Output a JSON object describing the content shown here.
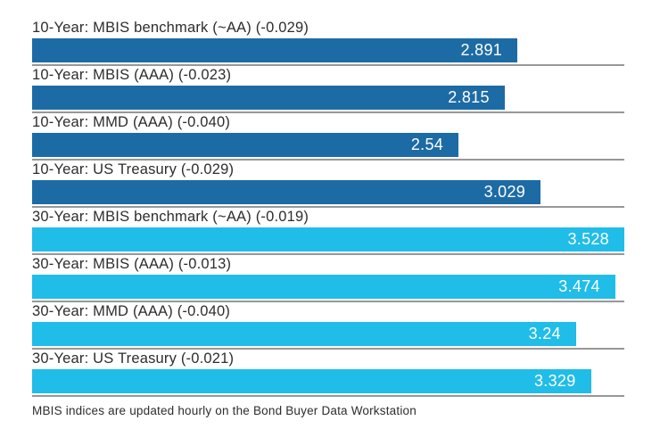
{
  "chart_data": {
    "type": "bar",
    "orientation": "horizontal",
    "title": "",
    "xlabel": "",
    "ylabel": "",
    "xlim": [
      0,
      3.528
    ],
    "grid": false,
    "legend": "none",
    "colors": {
      "ten_year": "#1d6ba5",
      "thirty_year": "#20bde8",
      "separator": "#979797",
      "label_text": "#2d2d2d",
      "value_text": "#ffffff"
    },
    "bars": [
      {
        "label": "10-Year: MBIS benchmark (~AA) (-0.029)",
        "value": 2.891,
        "value_label": "2.891",
        "group": "ten_year"
      },
      {
        "label": "10-Year: MBIS (AAA) (-0.023)",
        "value": 2.815,
        "value_label": "2.815",
        "group": "ten_year"
      },
      {
        "label": "10-Year: MMD (AAA) (-0.040)",
        "value": 2.54,
        "value_label": "2.54",
        "group": "ten_year"
      },
      {
        "label": "10-Year: US Treasury (-0.029)",
        "value": 3.029,
        "value_label": "3.029",
        "group": "ten_year"
      },
      {
        "label": "30-Year: MBIS benchmark (~AA) (-0.019)",
        "value": 3.528,
        "value_label": "3.528",
        "group": "thirty_year"
      },
      {
        "label": "30-Year: MBIS (AAA) (-0.013)",
        "value": 3.474,
        "value_label": "3.474",
        "group": "thirty_year"
      },
      {
        "label": "30-Year: MMD (AAA) (-0.040)",
        "value": 3.24,
        "value_label": "3.24",
        "group": "thirty_year"
      },
      {
        "label": "30-Year: US Treasury (-0.021)",
        "value": 3.329,
        "value_label": "3.329",
        "group": "thirty_year"
      }
    ],
    "footnote": "MBIS indices are updated hourly on the Bond Buyer Data Workstation"
  }
}
